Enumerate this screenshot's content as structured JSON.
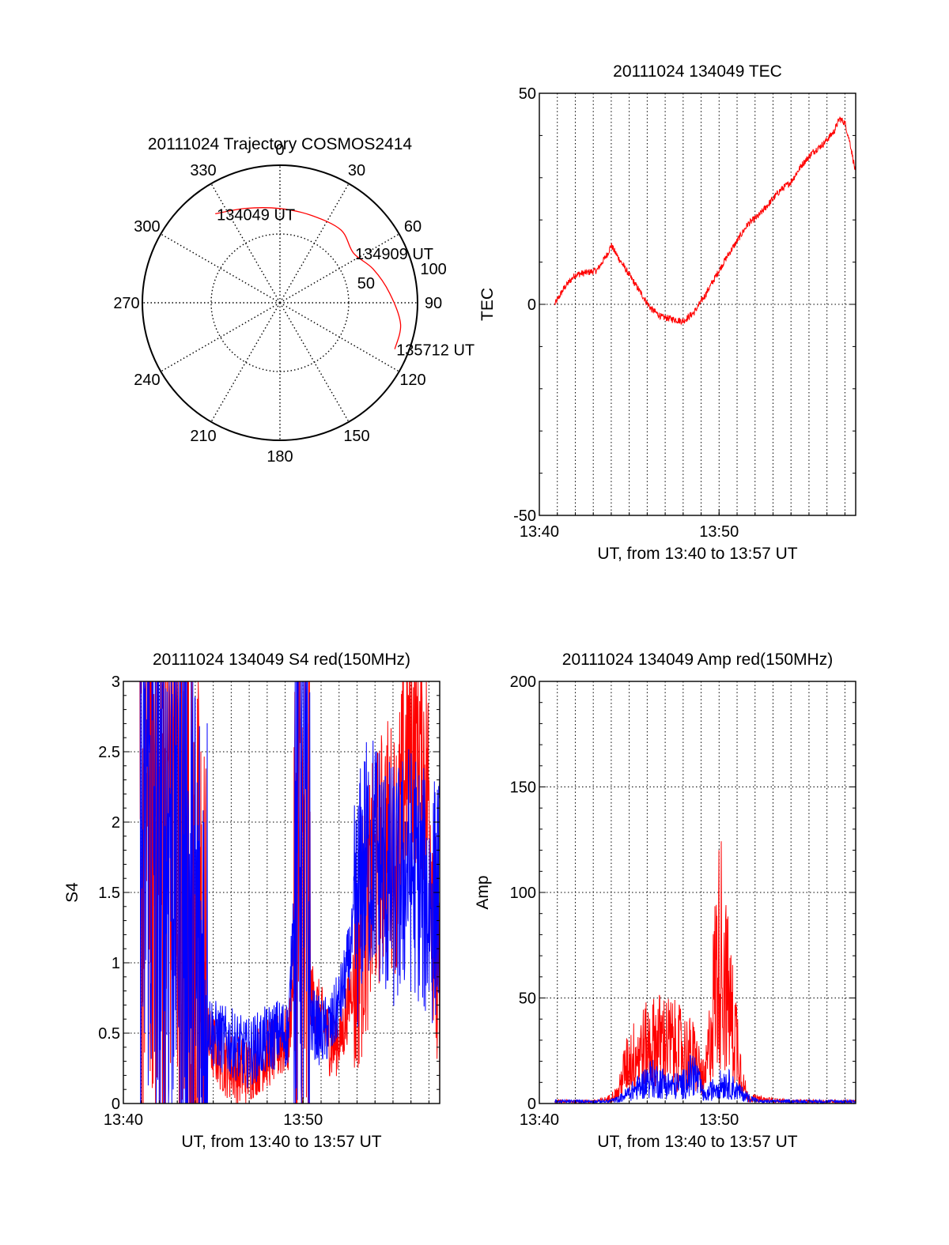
{
  "colors": {
    "red": "#ff0000",
    "blue": "#0000ff",
    "frame": "#000000",
    "grid": "#000000"
  },
  "chart_data": [
    {
      "type": "polar",
      "title": "20111024 Trajectory COSMOS2414",
      "angle_labels": [
        "0",
        "30",
        "60",
        "90",
        "120",
        "150",
        "180",
        "210",
        "240",
        "270",
        "300",
        "330"
      ],
      "radius_labels": [
        "50",
        "100"
      ],
      "rlim": [
        0,
        100
      ],
      "grid": true,
      "trajectory": {
        "color": "#ff0000",
        "points": [
          {
            "az": -36.0,
            "zen": 80.0,
            "label": "134049 UT"
          },
          {
            "az": -20.0,
            "zen": 73.0
          },
          {
            "az": 0.0,
            "zen": 68.5
          },
          {
            "az": 20.0,
            "zen": 67.5
          },
          {
            "az": 40.0,
            "zen": 69.0
          },
          {
            "az": 56.0,
            "zen": 64.5,
            "label": "134909 UT"
          },
          {
            "az": 70.0,
            "zen": 72.0
          },
          {
            "az": 85.0,
            "zen": 80.0
          },
          {
            "az": 100.0,
            "zen": 89.0
          },
          {
            "az": 112.0,
            "zen": 90.0,
            "label": "135712 UT"
          }
        ]
      }
    },
    {
      "type": "line",
      "title": "20111024 134049 TEC",
      "xlabel": "UT, from 13:40 to 13:57 UT",
      "ylabel": "TEC",
      "x_ticks": [
        "13:40",
        "13:50"
      ],
      "y_ticks": [
        "-50",
        "0",
        "50"
      ],
      "xlim": [
        13.6667,
        13.96
      ],
      "ylim": [
        -50,
        50
      ],
      "grid": true,
      "series": [
        {
          "color": "#ff0000",
          "x": [
            13.681,
            13.69,
            13.7,
            13.71,
            13.72,
            13.73,
            13.7333,
            13.74,
            13.75,
            13.76,
            13.77,
            13.78,
            13.79,
            13.8,
            13.81,
            13.82,
            13.8333,
            13.84,
            13.85,
            13.86,
            13.87,
            13.88,
            13.89,
            13.9,
            13.91,
            13.92,
            13.93,
            13.94,
            13.945,
            13.95,
            13.955,
            13.96
          ],
          "y": [
            0,
            4,
            7,
            7.5,
            8,
            12,
            14,
            11,
            7,
            3,
            -1,
            -3,
            -3.5,
            -4,
            -2,
            2,
            8,
            11,
            15,
            19,
            21,
            24,
            27,
            29,
            33,
            36,
            38,
            41,
            44,
            43,
            38,
            31
          ]
        }
      ]
    },
    {
      "type": "line",
      "title": "20111024 134049 S4 red(150MHz)",
      "xlabel": "UT, from 13:40 to 13:57 UT",
      "ylabel": "S4",
      "x_ticks": [
        "13:40",
        "13:50"
      ],
      "y_ticks": [
        "0",
        "0.5",
        "1",
        "1.5",
        "2",
        "2.5",
        "3"
      ],
      "xlim": [
        13.6667,
        13.96
      ],
      "ylim": [
        0,
        3
      ],
      "grid": true,
      "series": [
        {
          "color": "#ff0000",
          "x": [
            13.682,
            13.69,
            13.7,
            13.71,
            13.72,
            13.73,
            13.735,
            13.74,
            13.75,
            13.76,
            13.77,
            13.78,
            13.79,
            13.8,
            13.81,
            13.82,
            13.83,
            13.835,
            13.84,
            13.85,
            13.86,
            13.87,
            13.88,
            13.89,
            13.9,
            13.91,
            13.92,
            13.93,
            13.94,
            13.95,
            13.96
          ],
          "y": [
            1.5,
            2.8,
            1.5,
            2.5,
            2.2,
            0.8,
            0.6,
            0.5,
            0.4,
            0.3,
            0.25,
            0.22,
            0.3,
            0.35,
            0.4,
            0.45,
            1.5,
            1.2,
            0.8,
            0.6,
            0.4,
            0.5,
            0.9,
            1.3,
            1.6,
            1.9,
            1.8,
            2.5,
            2.6,
            2.2,
            0.4
          ]
        },
        {
          "color": "#0000ff",
          "x": [
            13.682,
            13.69,
            13.7,
            13.71,
            13.72,
            13.73,
            13.735,
            13.74,
            13.75,
            13.76,
            13.77,
            13.78,
            13.79,
            13.8,
            13.81,
            13.82,
            13.83,
            13.835,
            13.84,
            13.85,
            13.86,
            13.87,
            13.88,
            13.89,
            13.9,
            13.91,
            13.92,
            13.93,
            13.94,
            13.95,
            13.96
          ],
          "y": [
            1.5,
            2.5,
            1.2,
            2.2,
            2.0,
            1.0,
            0.8,
            0.7,
            0.5,
            0.45,
            0.42,
            0.35,
            0.4,
            0.45,
            0.5,
            0.5,
            2.5,
            1.8,
            0.6,
            0.5,
            0.55,
            0.8,
            1.2,
            1.7,
            1.8,
            1.6,
            1.5,
            1.7,
            1.6,
            1.4,
            1.5
          ]
        }
      ]
    },
    {
      "type": "line",
      "title": "20111024 134049 Amp red(150MHz)",
      "xlabel": "UT, from 13:40 to 13:57 UT",
      "ylabel": "Amp",
      "x_ticks": [
        "13:40",
        "13:50"
      ],
      "y_ticks": [
        "0",
        "50",
        "100",
        "150",
        "200"
      ],
      "xlim": [
        13.6667,
        13.96
      ],
      "ylim": [
        0,
        200
      ],
      "grid": true,
      "series": [
        {
          "color": "#ff0000",
          "x": [
            13.681,
            13.7,
            13.72,
            13.73,
            13.74,
            13.745,
            13.75,
            13.76,
            13.77,
            13.78,
            13.79,
            13.8,
            13.81,
            13.82,
            13.825,
            13.83,
            13.835,
            13.84,
            13.845,
            13.85,
            13.855,
            13.86,
            13.87,
            13.9,
            13.96
          ],
          "y": [
            1,
            1,
            1,
            2,
            5,
            15,
            20,
            25,
            28,
            30,
            28,
            25,
            22,
            10,
            30,
            60,
            75,
            55,
            40,
            30,
            10,
            3,
            2,
            1,
            1
          ]
        },
        {
          "color": "#0000ff",
          "x": [
            13.681,
            13.7,
            13.72,
            13.73,
            13.74,
            13.75,
            13.76,
            13.77,
            13.78,
            13.79,
            13.8,
            13.81,
            13.82,
            13.83,
            13.84,
            13.85,
            13.86,
            13.87,
            13.9,
            13.96
          ],
          "y": [
            1,
            1,
            1,
            1,
            2,
            5,
            8,
            12,
            10,
            8,
            9,
            15,
            3,
            8,
            10,
            6,
            3,
            1,
            1,
            1
          ]
        }
      ]
    }
  ]
}
